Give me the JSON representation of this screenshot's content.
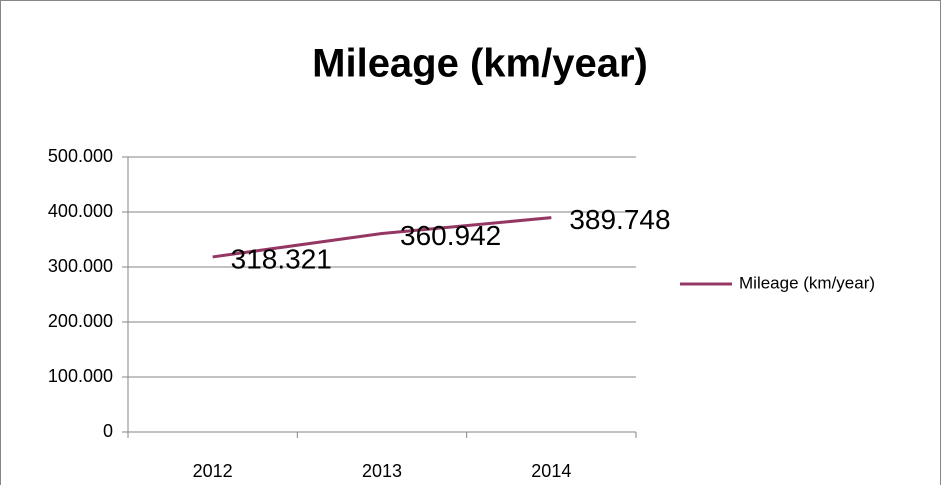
{
  "chart_data": {
    "type": "line",
    "title": "Mileage (km/year)",
    "categories": [
      "2012",
      "2013",
      "2014"
    ],
    "series": [
      {
        "name": "Mileage (km/year)",
        "color": "#953763",
        "values": [
          318321,
          360942,
          389748
        ],
        "value_labels": [
          "318.321",
          "360.942",
          "389.748"
        ]
      }
    ],
    "ylim": [
      0,
      500000
    ],
    "yticks": [
      0,
      {
        "value": 100000,
        "label": "100.000"
      },
      {
        "value": 200000,
        "label": "200.000"
      },
      {
        "value": 300000,
        "label": "300.000"
      },
      {
        "value": 400000,
        "label": "400.000"
      },
      {
        "value": 500000,
        "label": "500.000"
      }
    ],
    "grid": true,
    "legend": "right"
  }
}
